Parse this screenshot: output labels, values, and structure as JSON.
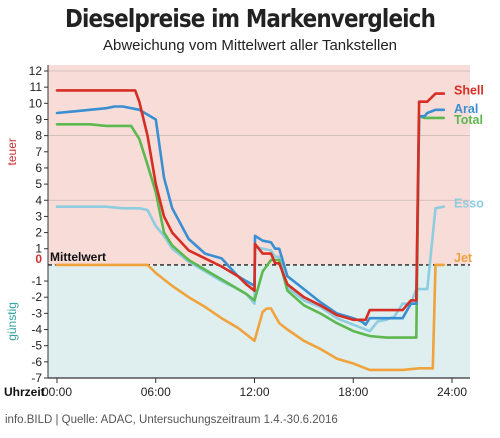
{
  "chart_data": {
    "type": "line",
    "title": "Dieselpreise im Markenvergleich",
    "subtitle": "Abweichung vom Mittelwert aller Tankstellen",
    "ylabel_positive": "teuer",
    "ylabel_negative": "günstig",
    "xlabel": "Uhrzeit",
    "reference_label": "Mittelwert",
    "ylim": [
      -7,
      12
    ],
    "xlim": [
      "00:00",
      "24:00"
    ],
    "yticks": [
      12,
      11,
      10,
      9,
      8,
      7,
      6,
      5,
      4,
      3,
      2,
      1,
      0,
      -1,
      -2,
      -3,
      -4,
      -5,
      -6,
      -7
    ],
    "xticks": [
      "00:00",
      "06:00",
      "12:00",
      "18:00",
      "24:00"
    ],
    "source": "info.BILD | Quelle: ADAC, Untersuchungszeitraum 1.4.-30.6.2016",
    "colors": {
      "positive_bg": "#f8dcd8",
      "negative_bg": "#dfeff0",
      "grid": "#c8b8b4",
      "axis": "#333333",
      "ylabel_positive": "#cc3333",
      "ylabel_negative": "#33a0a0"
    },
    "series": [
      {
        "name": "Shell",
        "color": "#d62e25",
        "x": [
          "00:00",
          "01:00",
          "02:00",
          "03:00",
          "04:00",
          "04:45",
          "05:00",
          "05:30",
          "06:00",
          "06:30",
          "07:00",
          "08:00",
          "09:00",
          "10:00",
          "11:00",
          "11:30",
          "12:00",
          "12:02",
          "12:30",
          "13:00",
          "13:15",
          "13:30",
          "14:00",
          "15:00",
          "16:00",
          "17:00",
          "18:00",
          "18:30",
          "18:45",
          "19:00",
          "20:00",
          "20:30",
          "21:00",
          "21:30",
          "21:50",
          "22:00",
          "22:20",
          "22:30",
          "23:00",
          "23:30"
        ],
        "y": [
          10.8,
          10.8,
          10.8,
          10.8,
          10.8,
          10.8,
          10.1,
          8,
          5,
          3,
          2,
          0.9,
          0.4,
          -0.1,
          -0.7,
          -1.2,
          -1.6,
          1.3,
          0.7,
          0.7,
          0.1,
          0.1,
          -1.2,
          -2,
          -2.5,
          -3.1,
          -3.4,
          -3.4,
          -3.4,
          -2.8,
          -2.8,
          -2.8,
          -2.8,
          -2.2,
          -2.2,
          10.1,
          10.1,
          10.1,
          10.6,
          10.6
        ]
      },
      {
        "name": "Aral",
        "color": "#3a8fd2",
        "x": [
          "00:00",
          "01:00",
          "02:00",
          "03:00",
          "03:30",
          "04:00",
          "05:00",
          "06:00",
          "06:30",
          "07:00",
          "08:00",
          "09:00",
          "10:00",
          "11:00",
          "11:30",
          "12:00",
          "12:02",
          "12:30",
          "13:00",
          "13:15",
          "13:30",
          "14:00",
          "15:00",
          "16:00",
          "17:00",
          "18:00",
          "18:30",
          "18:45",
          "19:00",
          "20:00",
          "20:30",
          "21:00",
          "21:30",
          "21:50",
          "22:00",
          "22:20",
          "22:30",
          "23:00",
          "23:30"
        ],
        "y": [
          9.4,
          9.5,
          9.6,
          9.7,
          9.8,
          9.8,
          9.6,
          9,
          5.4,
          3.5,
          1.6,
          0.7,
          0.4,
          -0.7,
          -1,
          -1.3,
          1.8,
          1.5,
          1.4,
          1,
          1,
          -0.7,
          -1.5,
          -2.3,
          -3,
          -3.3,
          -3.5,
          -3.7,
          -3.3,
          -3.3,
          -3.3,
          -3.3,
          -2.4,
          -2.4,
          9.2,
          9.2,
          9.4,
          9.6,
          9.6
        ]
      },
      {
        "name": "Total",
        "color": "#5db84f",
        "x": [
          "00:00",
          "01:00",
          "02:00",
          "03:00",
          "04:00",
          "04:30",
          "05:00",
          "05:30",
          "06:00",
          "06:30",
          "07:00",
          "08:00",
          "09:00",
          "10:00",
          "11:00",
          "11:30",
          "12:00",
          "12:30",
          "13:00",
          "13:30",
          "14:00",
          "15:00",
          "16:00",
          "17:00",
          "18:00",
          "19:00",
          "20:00",
          "20:30",
          "21:00",
          "21:30",
          "21:50",
          "22:00",
          "22:20",
          "22:30",
          "23:00",
          "23:30"
        ],
        "y": [
          8.7,
          8.7,
          8.7,
          8.6,
          8.6,
          8.6,
          7.8,
          6.2,
          4.5,
          2,
          1.2,
          0.3,
          -0.3,
          -0.9,
          -1.5,
          -1.8,
          -2.2,
          -0.4,
          0.3,
          0.3,
          -1.6,
          -2.5,
          -3,
          -3.6,
          -4.1,
          -4.4,
          -4.5,
          -4.5,
          -4.5,
          -4.5,
          -4.5,
          9.2,
          9.1,
          9.1,
          9.1,
          9.1
        ]
      },
      {
        "name": "Esso",
        "color": "#8ecce0",
        "x": [
          "00:00",
          "01:00",
          "02:00",
          "03:00",
          "04:00",
          "05:00",
          "05:30",
          "06:00",
          "06:30",
          "07:00",
          "08:00",
          "09:00",
          "10:00",
          "11:00",
          "11:30",
          "12:00",
          "12:02",
          "12:30",
          "13:00",
          "13:15",
          "13:30",
          "14:00",
          "15:00",
          "16:00",
          "17:00",
          "18:00",
          "19:00",
          "19:30",
          "20:00",
          "20:30",
          "21:00",
          "21:30",
          "21:50",
          "22:00",
          "22:20",
          "22:30",
          "23:00",
          "23:30"
        ],
        "y": [
          3.6,
          3.6,
          3.6,
          3.6,
          3.5,
          3.5,
          3.4,
          2.4,
          1.8,
          1,
          0.2,
          -0.4,
          -1,
          -1.5,
          -1.8,
          -2.4,
          1.1,
          1,
          0.9,
          0.5,
          0.5,
          -1.4,
          -2.2,
          -2.6,
          -3.3,
          -3.7,
          -4.1,
          -3.5,
          -3.4,
          -3.2,
          -2.4,
          -2.4,
          -1.5,
          -1.5,
          -1.5,
          -1.5,
          3.5,
          3.6
        ]
      },
      {
        "name": "Jet",
        "color": "#f0a33c",
        "x": [
          "00:00",
          "01:00",
          "02:00",
          "03:00",
          "04:00",
          "05:00",
          "05:30",
          "06:00",
          "07:00",
          "08:00",
          "09:00",
          "10:00",
          "11:00",
          "12:00",
          "12:30",
          "12:45",
          "13:00",
          "13:30",
          "14:00",
          "15:00",
          "16:00",
          "17:00",
          "18:00",
          "19:00",
          "20:00",
          "21:00",
          "22:00",
          "22:15",
          "22:30",
          "22:50",
          "23:00",
          "23:30"
        ],
        "y": [
          0,
          0,
          0,
          0,
          0,
          0,
          0,
          -0.5,
          -1.3,
          -2,
          -2.6,
          -3.3,
          -3.9,
          -4.7,
          -2.9,
          -2.7,
          -2.7,
          -3.6,
          -4,
          -4.7,
          -5.2,
          -5.8,
          -6.1,
          -6.5,
          -6.5,
          -6.5,
          -6.4,
          -6.4,
          -6.4,
          -6.4,
          0,
          0
        ]
      }
    ]
  }
}
